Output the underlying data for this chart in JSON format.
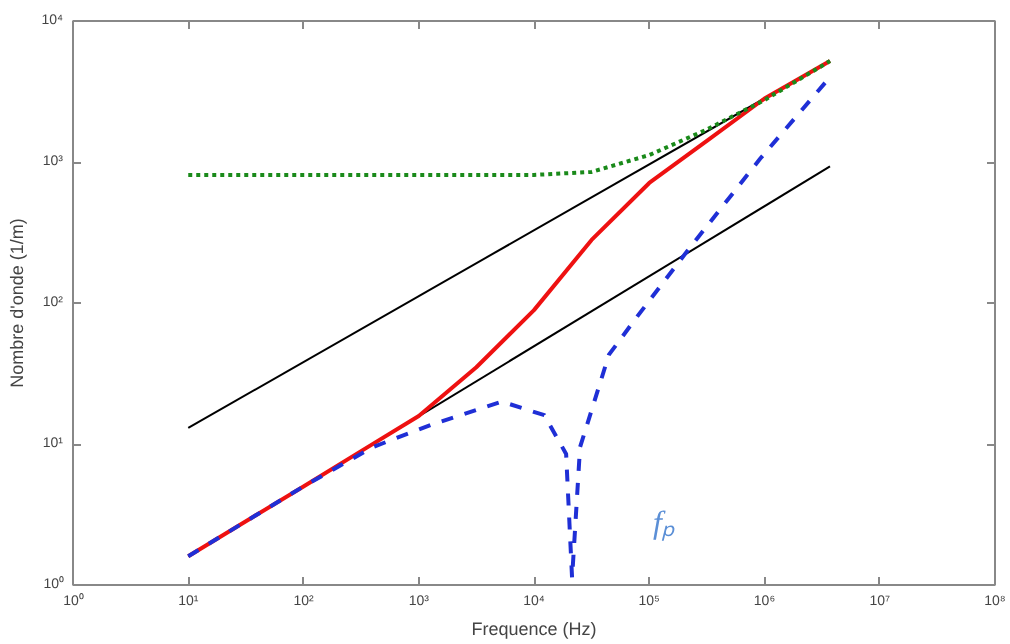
{
  "chart_data": {
    "type": "line",
    "xlabel": "Frequence (Hz)",
    "ylabel": "Nombre d'onde (1/m)",
    "log": "xy",
    "grid": false,
    "marker": "none",
    "xlim": [
      1,
      100000000
    ],
    "ylim": [
      1,
      10000
    ],
    "xticks": [
      {
        "value": 1,
        "label": "10⁰"
      },
      {
        "value": 10,
        "label": "10¹"
      },
      {
        "value": 100,
        "label": "10²"
      },
      {
        "value": 1000,
        "label": "10³"
      },
      {
        "value": 10000,
        "label": "10⁴"
      },
      {
        "value": 100000,
        "label": "10⁵"
      },
      {
        "value": 1000000,
        "label": "10⁶"
      },
      {
        "value": 10000000,
        "label": "10⁷"
      },
      {
        "value": 100000000,
        "label": "10⁸"
      }
    ],
    "yticks": [
      {
        "value": 1,
        "label": "10⁰"
      },
      {
        "value": 10,
        "label": "10¹"
      },
      {
        "value": 100,
        "label": "10²"
      },
      {
        "value": 1000,
        "label": "10³"
      },
      {
        "value": 10000,
        "label": "10⁴"
      }
    ],
    "series": [
      {
        "color": "#000000",
        "line_style": "solid",
        "x": [
          10,
          3700000
        ],
        "values": [
          13,
          5200
        ]
      },
      {
        "color": "#000000",
        "line_style": "solid",
        "x": [
          10,
          3700000
        ],
        "values": [
          1.6,
          930
        ]
      },
      {
        "color": "#1a8a1a",
        "line_style": "dotted",
        "x": [
          10,
          100,
          1000,
          10000,
          31600,
          100000,
          316000,
          1000000,
          3700000
        ],
        "values": [
          810,
          810,
          810,
          810,
          850,
          1120,
          1700,
          2750,
          5200
        ]
      },
      {
        "color": "#ee1111",
        "line_style": "solid",
        "x": [
          10,
          100,
          316,
          1000,
          3160,
          10000,
          31600,
          100000,
          316000,
          1000000,
          3700000
        ],
        "values": [
          1.6,
          5.0,
          8.9,
          15.8,
          35,
          89,
          280,
          710,
          1410,
          2820,
          5200
        ]
      },
      {
        "color": "#1f2fd6",
        "line_style": "dashed",
        "x": [
          10,
          100,
          398,
          1320,
          5250,
          12300,
          19000,
          21400,
          25100,
          44700,
          79400,
          214000,
          912000,
          3700000
        ],
        "values": [
          1.6,
          5.0,
          9.5,
          13.8,
          20,
          16,
          8.5,
          1.12,
          9.5,
          43,
          81,
          234,
          1050,
          4000
        ]
      }
    ],
    "annotations": [
      "fₚ"
    ]
  }
}
